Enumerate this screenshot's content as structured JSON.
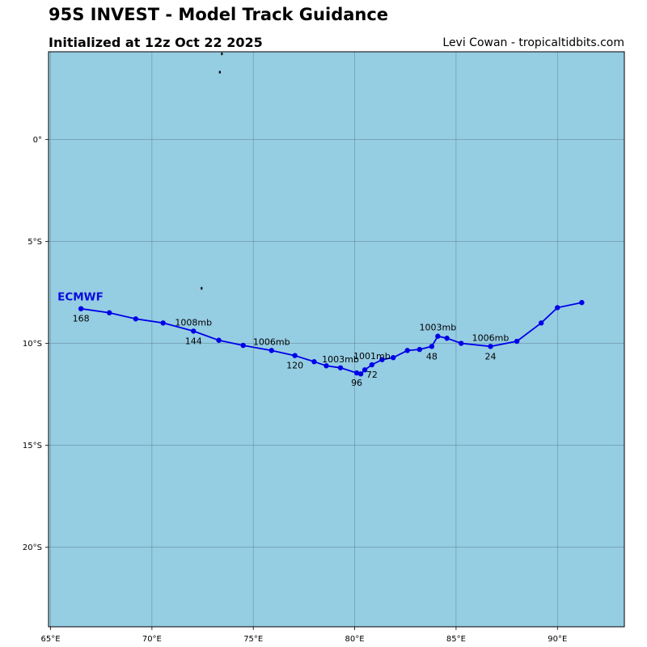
{
  "header": {
    "title": "95S INVEST - Model Track Guidance",
    "subtitle": "Initialized at 12z Oct 22 2025",
    "credit": "Levi Cowan - tropicaltidbits.com"
  },
  "colors": {
    "ocean": "#95cde3",
    "track": "#0000e8",
    "grid": "#5d7f8c",
    "model_label": "#0a0adc"
  },
  "map": {
    "lon_range": [
      64.9,
      93.3
    ],
    "lat_range": [
      -23.9,
      4.3
    ],
    "lon_ticks": [
      {
        "value": 65,
        "label": "65°E"
      },
      {
        "value": 70,
        "label": "70°E"
      },
      {
        "value": 75,
        "label": "75°E"
      },
      {
        "value": 80,
        "label": "80°E"
      },
      {
        "value": 85,
        "label": "85°E"
      },
      {
        "value": 90,
        "label": "90°E"
      }
    ],
    "lat_ticks": [
      {
        "value": 0,
        "label": "0°"
      },
      {
        "value": -5,
        "label": "5°S"
      },
      {
        "value": -10,
        "label": "10°S"
      },
      {
        "value": -15,
        "label": "15°S"
      },
      {
        "value": -20,
        "label": "20°S"
      }
    ],
    "islands": [
      {
        "lon": 73.45,
        "lat": 4.2
      },
      {
        "lon": 73.35,
        "lat": 3.3
      },
      {
        "lon": 72.45,
        "lat": -7.3
      }
    ]
  },
  "chart_data": {
    "type": "track_map",
    "title": "95S INVEST - Model Track Guidance",
    "subtitle": "Initialized at 12z Oct 22 2025",
    "series": [
      {
        "name": "ECMWF",
        "points": [
          {
            "lon": 91.2,
            "lat": -8.0
          },
          {
            "lon": 90.0,
            "lat": -8.25
          },
          {
            "lon": 89.2,
            "lat": -9.0
          },
          {
            "lon": 88.0,
            "lat": -9.9
          },
          {
            "lon": 86.7,
            "lat": -10.15,
            "hour": "24",
            "pressure": "1006mb"
          },
          {
            "lon": 85.25,
            "lat": -10.0
          },
          {
            "lon": 84.55,
            "lat": -9.75
          },
          {
            "lon": 84.1,
            "lat": -9.65,
            "pressure": "1003mb"
          },
          {
            "lon": 83.8,
            "lat": -10.15,
            "hour": "48"
          },
          {
            "lon": 83.2,
            "lat": -10.3
          },
          {
            "lon": 82.6,
            "lat": -10.35
          },
          {
            "lon": 81.9,
            "lat": -10.7
          },
          {
            "lon": 81.35,
            "lat": -10.8
          },
          {
            "lon": 80.85,
            "lat": -11.05,
            "hour": "72",
            "pressure": "1001mb"
          },
          {
            "lon": 80.5,
            "lat": -11.3
          },
          {
            "lon": 80.3,
            "lat": -11.5
          },
          {
            "lon": 80.1,
            "lat": -11.45,
            "hour": "96"
          },
          {
            "lon": 79.3,
            "lat": -11.2,
            "pressure": "1003mb"
          },
          {
            "lon": 78.6,
            "lat": -11.1
          },
          {
            "lon": 78.0,
            "lat": -10.9
          },
          {
            "lon": 77.05,
            "lat": -10.6,
            "hour": "120"
          },
          {
            "lon": 75.9,
            "lat": -10.35,
            "pressure": "1006mb"
          },
          {
            "lon": 74.5,
            "lat": -10.1
          },
          {
            "lon": 73.3,
            "lat": -9.85
          },
          {
            "lon": 72.05,
            "lat": -9.4,
            "hour": "144",
            "pressure": "1008mb"
          },
          {
            "lon": 70.55,
            "lat": -9.0
          },
          {
            "lon": 69.2,
            "lat": -8.8
          },
          {
            "lon": 67.9,
            "lat": -8.5
          },
          {
            "lon": 66.5,
            "lat": -8.3,
            "hour": "168"
          }
        ]
      }
    ]
  }
}
